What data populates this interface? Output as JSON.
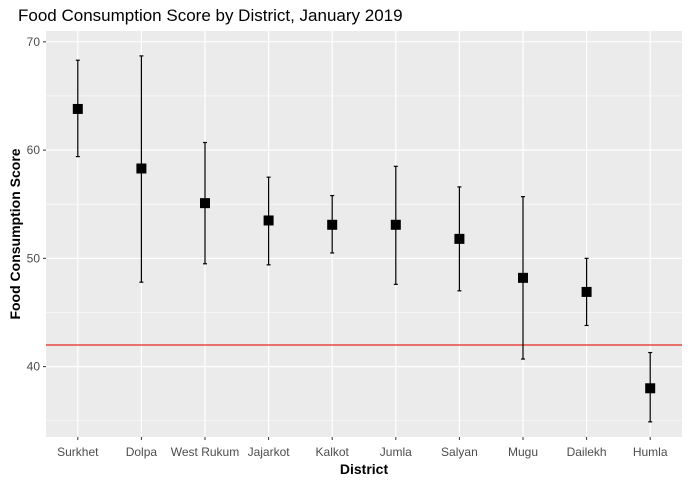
{
  "chart_data": {
    "type": "scatter",
    "title": "Food Consumption Score by District, January 2019",
    "xlabel": "District",
    "ylabel": "Food Consumption Score",
    "categories": [
      "Surkhet",
      "Dolpa",
      "West Rukum",
      "Jajarkot",
      "Kalkot",
      "Jumla",
      "Salyan",
      "Mugu",
      "Dailekh",
      "Humla"
    ],
    "values": [
      63.8,
      58.3,
      55.1,
      53.5,
      53.1,
      53.1,
      51.8,
      48.2,
      46.9,
      38.0
    ],
    "error_low": [
      59.4,
      47.8,
      49.5,
      49.4,
      50.5,
      47.6,
      47.0,
      40.7,
      43.8,
      34.9
    ],
    "error_high": [
      68.3,
      68.7,
      60.7,
      57.5,
      55.8,
      58.5,
      56.6,
      55.7,
      50.0,
      41.3
    ],
    "reference_line": 42,
    "ylim": [
      33.5,
      71
    ],
    "yticks": [
      40,
      50,
      60,
      70
    ],
    "grid": true,
    "colors": {
      "panel": "#ebebeb",
      "grid": "#ffffff",
      "points": "#000000",
      "reference_line": "#e8281f"
    }
  }
}
